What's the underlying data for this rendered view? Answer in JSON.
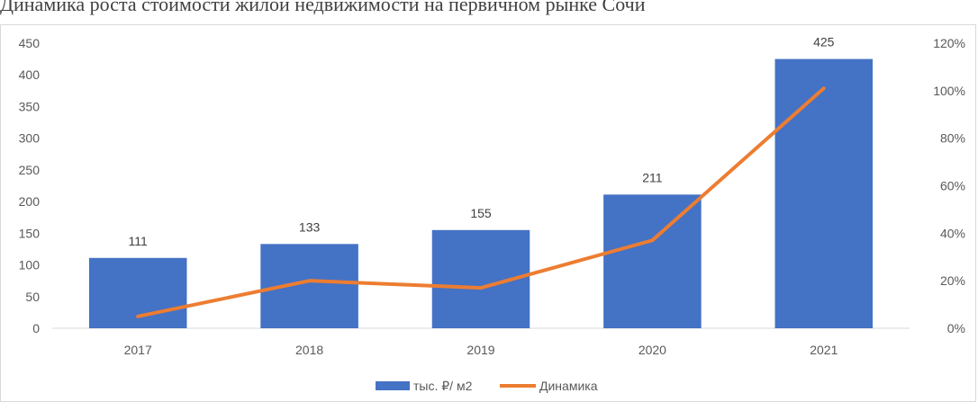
{
  "chart_data": {
    "type": "bar",
    "title": "Динамика роста стоимости жилой недвижимости на первичном рынке Сочи",
    "categories": [
      "2017",
      "2018",
      "2019",
      "2020",
      "2021"
    ],
    "series": [
      {
        "name": "тыс. ₽/ м2",
        "type": "bar",
        "axis": "left",
        "color": "#4472C4",
        "values": [
          111,
          133,
          155,
          211,
          425
        ]
      },
      {
        "name": "Динамика",
        "type": "line",
        "axis": "right",
        "color": "#ED7D31",
        "values": [
          0.05,
          0.2,
          0.17,
          0.37,
          1.01
        ]
      }
    ],
    "ylim": [
      0,
      450
    ],
    "yticks": [
      "0",
      "50",
      "100",
      "150",
      "200",
      "250",
      "300",
      "350",
      "400",
      "450"
    ],
    "y2lim": [
      0,
      1.2
    ],
    "y2ticks": [
      "0%",
      "20%",
      "40%",
      "60%",
      "80%",
      "100%",
      "120%"
    ],
    "data_labels": [
      "111",
      "133",
      "155",
      "211",
      "425"
    ],
    "legend_position": "bottom",
    "grid": false
  }
}
